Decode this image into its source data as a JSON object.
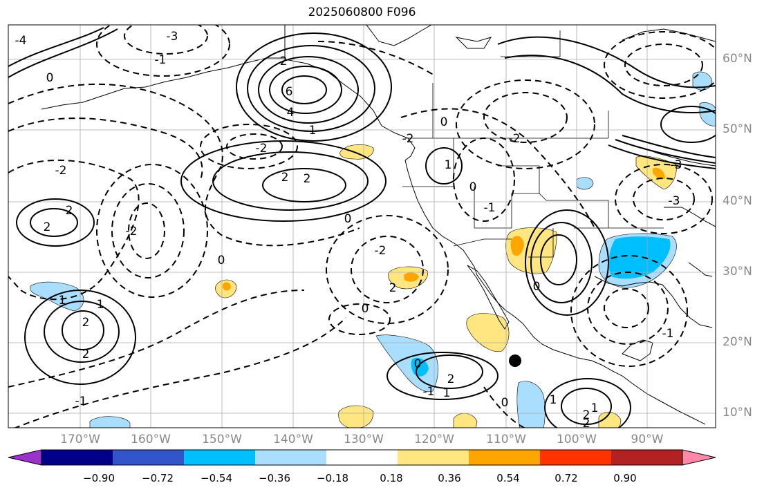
{
  "title": "2025060800 F096",
  "lat_labels": [
    "60°N",
    "50°N",
    "40°N",
    "30°N",
    "20°N",
    "10°N"
  ],
  "lon_labels": [
    "170°W",
    "160°W",
    "150°W",
    "140°W",
    "130°W",
    "120°W",
    "110°W",
    "100°W",
    "90°W"
  ],
  "colorbar": {
    "colors": [
      "#9933cc",
      "#000088",
      "#3355cc",
      "#00bfff",
      "#aadeff",
      "#ffffff",
      "#ffe680",
      "#ffa500",
      "#ff3300",
      "#b22222",
      "#ff88aa"
    ],
    "tick_labels": [
      "−0.90",
      "−0.72",
      "−0.54",
      "−0.36",
      "−0.18",
      "0.18",
      "0.36",
      "0.54",
      "0.72",
      "0.90"
    ]
  },
  "contour_labels": [
    "6",
    "4",
    "2",
    "2",
    "1",
    "0",
    "-1",
    "-2",
    "-3",
    "-4",
    "0",
    "2",
    "2",
    "1",
    "0",
    "-2",
    "-1",
    "1",
    "2",
    "2",
    "2",
    "1",
    "0",
    "-1",
    "-2",
    "0",
    "-2",
    "-3",
    "0",
    "2",
    "-1",
    "-2",
    "1",
    "2",
    "-3",
    "-2",
    "0",
    "-1",
    "1",
    "2",
    "0",
    "1",
    "2",
    "0"
  ],
  "marker": "forecast point",
  "colors": {
    "coast": "#000000",
    "grid": "#aaaaaa",
    "label": "#888888"
  }
}
